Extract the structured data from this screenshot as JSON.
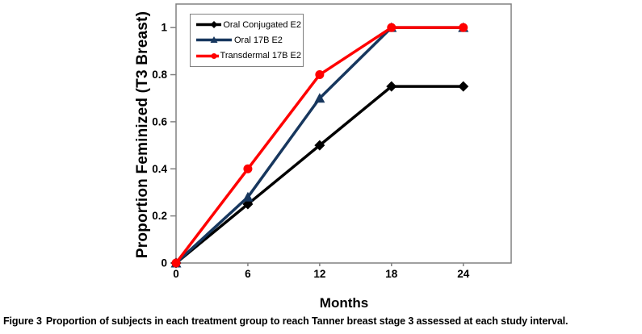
{
  "caption": {
    "label": "Figure 3",
    "text": "Proportion of subjects in each treatment group to reach Tanner breast stage 3 assessed at each study interval."
  },
  "chart_data": {
    "type": "line",
    "title": "",
    "xlabel": "Months",
    "ylabel": "Proportion Feminized (T3 Breast)",
    "x": [
      0,
      6,
      12,
      18,
      24
    ],
    "series": [
      {
        "name": "Oral Conjugated E2",
        "values": [
          0,
          0.25,
          0.5,
          0.75,
          0.75
        ],
        "color": "#000000",
        "marker": "diamond"
      },
      {
        "name": "Oral 17B E2",
        "values": [
          0,
          0.28,
          0.7,
          1,
          1
        ],
        "color": "#17375E",
        "marker": "triangle"
      },
      {
        "name": "Transdermal 17B E2",
        "values": [
          0,
          0.4,
          0.8,
          1,
          1
        ],
        "color": "#FF0000",
        "marker": "circle"
      }
    ],
    "xlim": [
      0,
      28
    ],
    "ylim": [
      0,
      1.1
    ],
    "xticks": [
      0,
      6,
      12,
      18,
      24
    ],
    "xtick_labels": [
      "0",
      "6",
      "12",
      "18",
      "24"
    ],
    "yticks": [
      0,
      0.2,
      0.4,
      0.6,
      0.8,
      1
    ],
    "ytick_labels": [
      "0",
      "0.2",
      "0.4",
      "0.6",
      "0.8",
      "1"
    ],
    "grid": false,
    "legend_position": "top-left-inside",
    "frame_color": "#808080"
  }
}
